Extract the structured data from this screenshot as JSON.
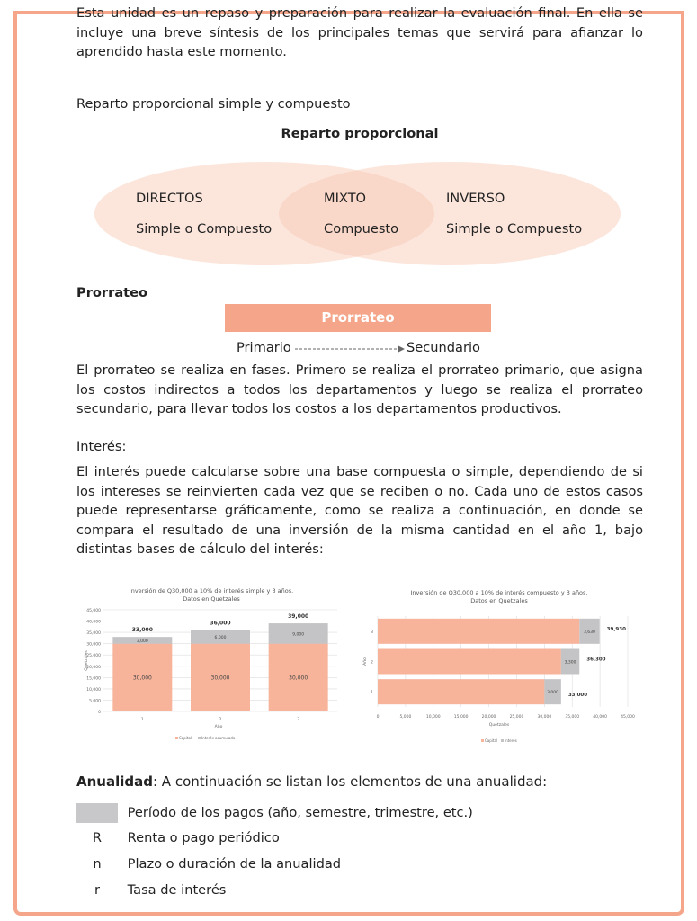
{
  "intro": "Esta unidad es un repaso y preparación para realizar la evaluación final. En ella se incluye una breve síntesis de los principales temas que servirá para afianzar lo aprendido hasta este momento.",
  "reparto": {
    "subtitle": "Reparto proporcional simple y compuesto",
    "title": "Reparto proporcional",
    "directos": {
      "name": "DIRECTOS",
      "type": "Simple o Compuesto"
    },
    "mixto": {
      "name": "MIXTO",
      "type": "Compuesto"
    },
    "inverso": {
      "name": "INVERSO",
      "type": "Simple o Compuesto"
    }
  },
  "prorrateo": {
    "heading": "Prorrateo",
    "box": "Prorrateo",
    "from": "Primario",
    "to": "Secundario",
    "text": "El prorrateo se realiza en fases. Primero se realiza el prorrateo primario, que asigna los costos indirectos a todos los departamentos y luego se realiza el prorrateo secundario, para llevar todos los costos a los departamentos productivos."
  },
  "interes": {
    "heading": "Interés:",
    "text": "El interés puede calcularse sobre una base compuesta o simple, dependiendo de si los intereses se reinvierten cada vez que se reciben o no. Cada uno de estos casos puede representarse gráficamente, como se realiza a continuación, en donde se compara el resultado de una inversión de la misma cantidad en el año 1, bajo distintas bases de cálculo del interés:"
  },
  "chart_data": [
    {
      "type": "bar",
      "stacked": true,
      "orientation": "vertical",
      "title": "Inversión de Q30,000 a 10% de interés simple y 3 años.",
      "subtitle": "Datos en Quetzales",
      "xlabel": "Año",
      "ylabel": "Quetzales",
      "categories": [
        "1",
        "2",
        "3"
      ],
      "ylim": [
        0,
        45000
      ],
      "yticks": [
        "0",
        "5,000",
        "10,000",
        "15,000",
        "20,000",
        "25,000",
        "30,000",
        "35,000",
        "40,000",
        "45,000"
      ],
      "grid": true,
      "legend": "bottom",
      "series": [
        {
          "name": "Capital",
          "values": [
            30000,
            30000,
            30000
          ],
          "labels": [
            "30,000",
            "30,000",
            "30,000"
          ],
          "color": "#f7b49b"
        },
        {
          "name": "Interés acumulado",
          "values": [
            3000,
            6000,
            9000
          ],
          "labels": [
            "3,000",
            "6,000",
            "9,000"
          ],
          "color": "#c4c4c6"
        }
      ],
      "totals": [
        "33,000",
        "36,000",
        "39,000"
      ]
    },
    {
      "type": "bar",
      "stacked": true,
      "orientation": "horizontal",
      "title": "Inversión de Q30,000 a 10% de interés compuesto y 3 años.",
      "subtitle": "Datos en Quetzales",
      "xlabel": "Quetzales",
      "ylabel": "Año",
      "categories": [
        "1",
        "2",
        "3"
      ],
      "xlim": [
        0,
        45000
      ],
      "xticks": [
        "0",
        "5,000",
        "10,000",
        "15,000",
        "20,000",
        "25,000",
        "30,000",
        "35,000",
        "40,000",
        "45,000"
      ],
      "grid": true,
      "legend": "bottom",
      "series": [
        {
          "name": "Capital",
          "values": [
            30000,
            33000,
            36300
          ],
          "color": "#f7b49b"
        },
        {
          "name": "Interés",
          "values": [
            3000,
            3300,
            3630
          ],
          "labels": [
            "3,000",
            "3,300",
            "3,630"
          ],
          "color": "#c4c4c6"
        }
      ],
      "totals": [
        "33,000",
        "36,300",
        "39,930"
      ]
    }
  ],
  "anualidad": {
    "heading": "Anualidad",
    "text": ": A continuación se listan los elementos de una anualidad:",
    "items": [
      {
        "symbol": "",
        "desc": "Período de los pagos (año, semestre, trimestre, etc.)"
      },
      {
        "symbol": "R",
        "desc": "Renta o pago periódico"
      },
      {
        "symbol": "n",
        "desc": "Plazo o duración de la anualidad"
      },
      {
        "symbol": "r",
        "desc": "Tasa de interés"
      }
    ]
  }
}
